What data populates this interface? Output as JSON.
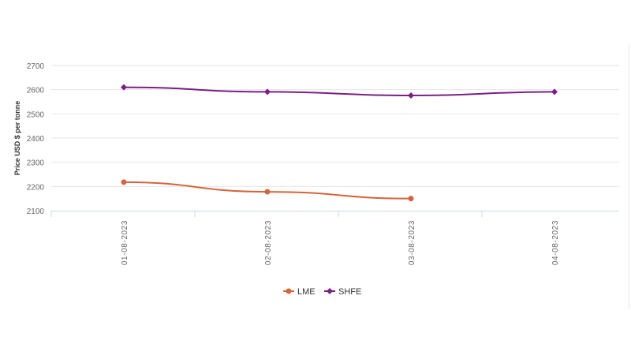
{
  "chart_data": {
    "type": "line",
    "title": "",
    "xlabel": "",
    "ylabel": "Price USD $ per tonne",
    "categories": [
      "01-08-2023",
      "02-08-2023",
      "03-08-2023",
      "04-08-2023"
    ],
    "ylim": [
      2100,
      2700
    ],
    "yticks": [
      2100,
      2200,
      2300,
      2400,
      2500,
      2600,
      2700
    ],
    "grid": true,
    "legend_position": "bottom-center",
    "series": [
      {
        "name": "LME",
        "color": "#d4643a",
        "marker": "circle",
        "values": [
          2218,
          2178,
          2150,
          null
        ]
      },
      {
        "name": "SHFE",
        "color": "#7b1f86",
        "marker": "diamond",
        "values": [
          2610,
          2591,
          2576,
          2591
        ]
      }
    ]
  }
}
